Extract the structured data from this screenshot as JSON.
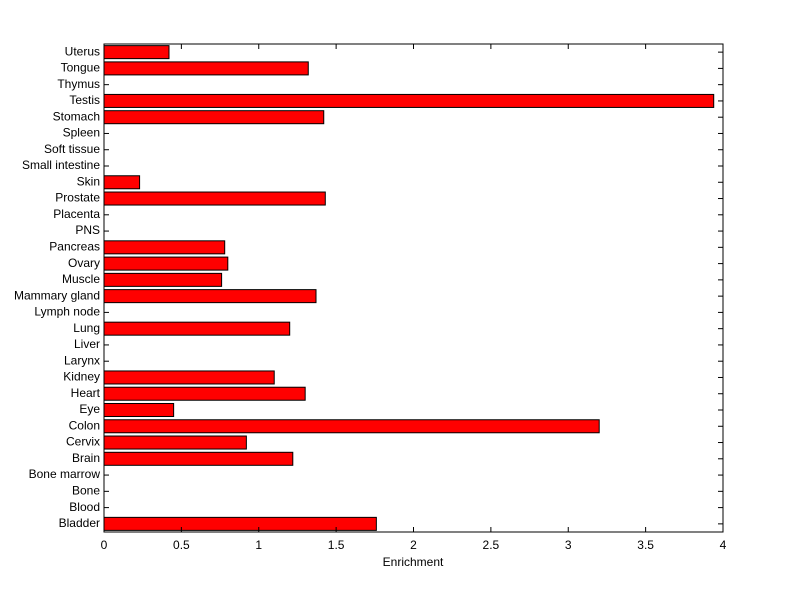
{
  "chart_data": {
    "type": "barh",
    "x_label": "Enrichment",
    "categories": [
      "Bladder",
      "Blood",
      "Bone",
      "Bone marrow",
      "Brain",
      "Cervix",
      "Colon",
      "Eye",
      "Heart",
      "Kidney",
      "Larynx",
      "Liver",
      "Lung",
      "Lymph node",
      "Mammary gland",
      "Muscle",
      "Ovary",
      "Pancreas",
      "PNS",
      "Placenta",
      "Prostate",
      "Skin",
      "Small intestine",
      "Soft tissue",
      "Spleen",
      "Stomach",
      "Testis",
      "Thymus",
      "Tongue",
      "Uterus"
    ],
    "values": [
      1.76,
      0,
      0,
      0,
      1.22,
      0.92,
      3.2,
      0.45,
      1.3,
      1.1,
      0,
      0,
      1.2,
      0,
      1.37,
      0.76,
      0.8,
      0.78,
      0,
      0,
      1.43,
      0.23,
      0,
      0,
      0,
      1.42,
      3.94,
      0,
      1.32,
      0.42
    ],
    "color": "#ff0000",
    "xlim": [
      0,
      4
    ],
    "xticks": [
      0,
      0.5,
      1,
      1.5,
      2,
      2.5,
      3,
      3.5,
      4
    ]
  }
}
